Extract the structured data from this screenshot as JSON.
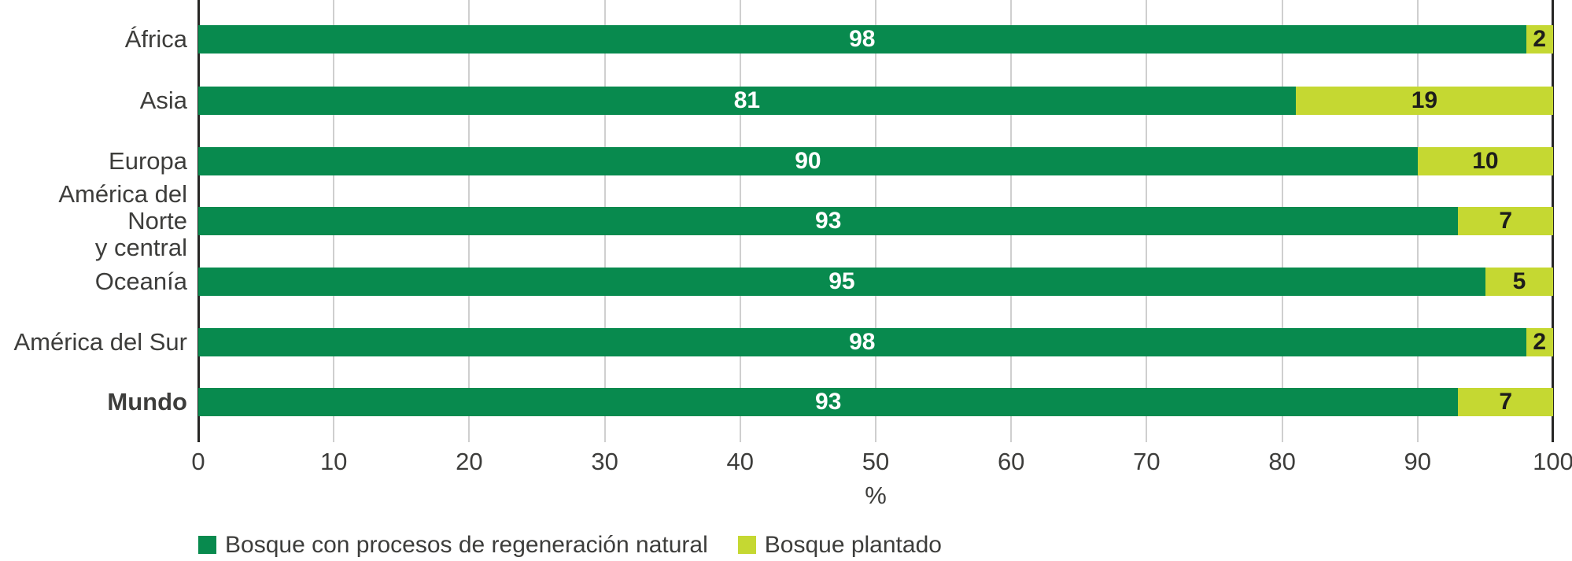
{
  "chart_data": {
    "type": "bar",
    "orientation": "horizontal",
    "stacked": true,
    "categories": [
      {
        "label": "África",
        "bold": false
      },
      {
        "label": "Asia",
        "bold": false
      },
      {
        "label": "Europa",
        "bold": false
      },
      {
        "label": "América del Norte\ny central",
        "bold": false
      },
      {
        "label": "Oceanía",
        "bold": false
      },
      {
        "label": "América del Sur",
        "bold": false
      },
      {
        "label": "Mundo",
        "bold": true
      }
    ],
    "series": [
      {
        "name": "Bosque con procesos de regeneración natural",
        "color": "#088a4e",
        "value_label_color": "#ffffff",
        "values": [
          98,
          81,
          90,
          93,
          95,
          98,
          93
        ]
      },
      {
        "name": "Bosque plantado",
        "color": "#c5d832",
        "value_label_color": "#1d1d1b",
        "values": [
          2,
          19,
          10,
          7,
          5,
          2,
          7
        ]
      }
    ],
    "xlabel": "%",
    "xlim": [
      0,
      100
    ],
    "xticks": [
      0,
      10,
      20,
      30,
      40,
      50,
      60,
      70,
      80,
      90,
      100
    ],
    "grid": true,
    "legend_position": "bottom-left",
    "colors": {
      "gridline": "#cfcfcf",
      "spine": "#262624",
      "tick_text": "#3d3d3b",
      "category_text": "#3d3d3b",
      "axis_label_text": "#3d3d3b",
      "legend_text": "#3d3d3b",
      "background": "#ffffff"
    }
  }
}
